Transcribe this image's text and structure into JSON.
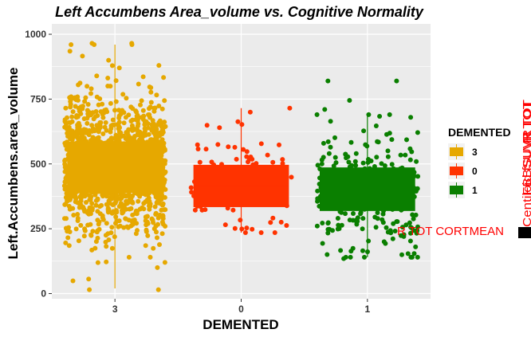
{
  "chart_data": {
    "type": "boxplot_jitter",
    "title": "Left Accumbens Area_volume vs. Cognitive Normality",
    "xlabel": "DEMENTED",
    "ylabel": "Left.Accumbens.area_volume",
    "categories": [
      "3",
      "0",
      "1"
    ],
    "y_ticks": [
      0,
      250,
      500,
      750,
      1000
    ],
    "ylim": [
      -20,
      1040
    ],
    "grid": true,
    "legend": {
      "title": "DEMENTED",
      "position": "right",
      "items": [
        {
          "label": "3",
          "color": "#E6A800"
        },
        {
          "label": "0",
          "color": "#FF3300"
        },
        {
          "label": "1",
          "color": "#0A7F00"
        }
      ]
    },
    "series": [
      {
        "name": "3",
        "color": "#E6A800",
        "box": {
          "q1": 390,
          "median": 490,
          "q3": 585
        },
        "whisker": {
          "low": 20,
          "high": 960
        },
        "n_points": 1400,
        "point_sd": 130
      },
      {
        "name": "0",
        "color": "#FF3300",
        "box": {
          "q1": 335,
          "median": 415,
          "q3": 495
        },
        "whisker": {
          "low": 235,
          "high": 715
        },
        "n_points": 90,
        "point_sd": 95
      },
      {
        "name": "1",
        "color": "#0A7F00",
        "box": {
          "q1": 320,
          "median": 400,
          "q3": 485
        },
        "whisker": {
          "low": 140,
          "high": 690
        },
        "n_points": 300,
        "point_sd": 110
      }
    ],
    "outliers": [
      {
        "group": "3",
        "values": [
          15,
          15,
          140,
          140,
          120,
          185,
          960,
          965,
          965,
          960,
          870,
          900,
          880,
          935,
          800,
          790
        ]
      },
      {
        "group": "0",
        "values": [
          235,
          715,
          700,
          640
        ]
      },
      {
        "group": "1",
        "values": [
          135,
          150,
          180,
          820,
          820,
          745,
          710,
          690,
          680,
          200,
          220
        ]
      }
    ]
  },
  "overlay": {
    "row_text": "R  TOT  CORTMEAN",
    "vertical_text_1": "Centiloid  fSUVR  TOT",
    "vertical_text_2": "FBBSUVR  TOT",
    "vertical_text_3": "R  TOT"
  }
}
